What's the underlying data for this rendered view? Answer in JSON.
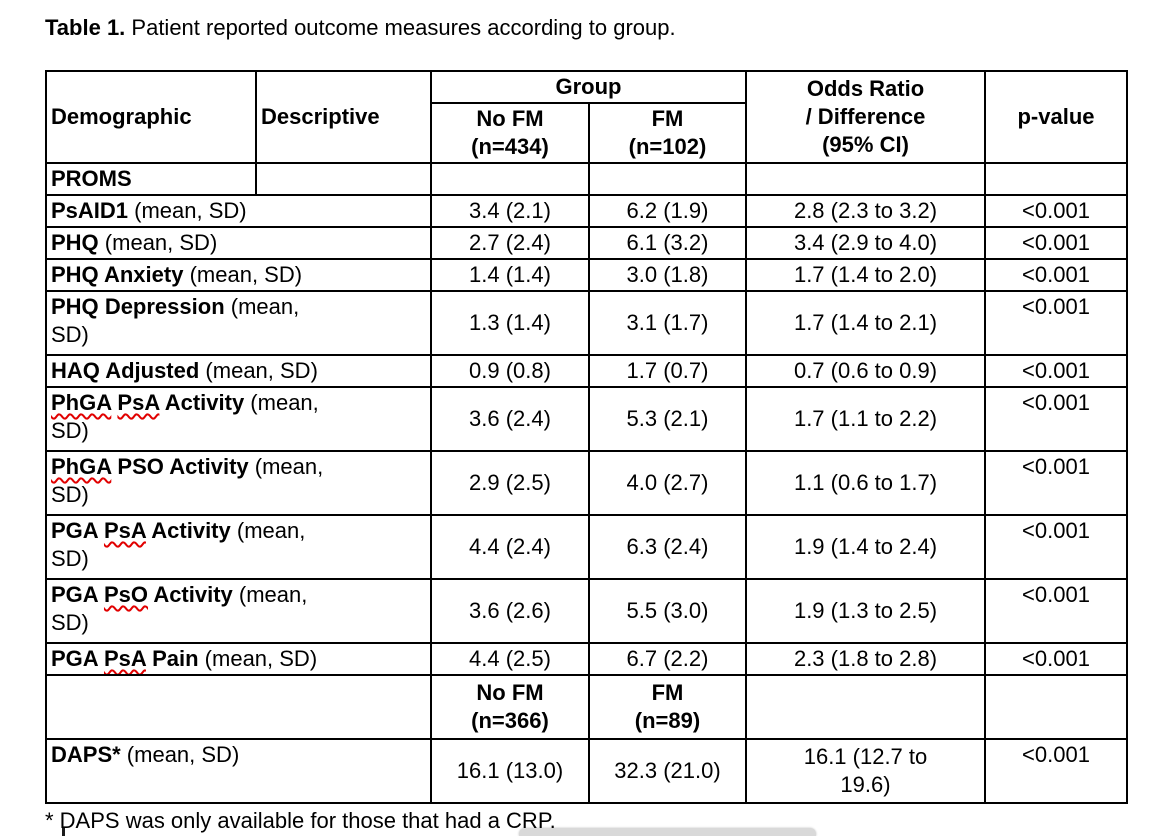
{
  "caption": {
    "bold": "Table 1.",
    "rest": " Patient reported outcome measures according to group."
  },
  "footnote": "* DAPS was only available for those that had a CRP.",
  "colors": {
    "spellcheck_underline": "#e10000",
    "border": "#000000",
    "scroll_pill": "#d9d9d9"
  },
  "table": {
    "header": {
      "demographic": "Demographic",
      "descriptive": "Descriptive",
      "group": "Group",
      "no_fm": "No FM\n(n=434)",
      "fm": "FM\n(n=102)",
      "odds_ratio": "Odds Ratio\n/ Difference\n(95% CI)",
      "p_value": "p-value"
    },
    "section_row": {
      "label": "PROMS"
    },
    "rows": [
      {
        "label": [
          {
            "text": "PsAID1",
            "misspelled": false
          }
        ],
        "rest": " (mean, SD)",
        "no_fm": "3.4 (2.1)",
        "fm": "6.2 (1.9)",
        "odds": "2.8 (2.3 to 3.2)",
        "p": "<0.001"
      },
      {
        "label": [
          {
            "text": "PHQ",
            "misspelled": false
          }
        ],
        "rest": " (mean, SD)",
        "no_fm": "2.7 (2.4)",
        "fm": "6.1 (3.2)",
        "odds": "3.4 (2.9 to 4.0)",
        "p": "<0.001"
      },
      {
        "label": [
          {
            "text": "PHQ",
            "misspelled": false
          },
          {
            "text": "Anxiety",
            "misspelled": false
          }
        ],
        "rest": " (mean, SD)",
        "no_fm": "1.4 (1.4)",
        "fm": "3.0 (1.8)",
        "odds": "1.7 (1.4 to 2.0)",
        "p": "<0.001"
      },
      {
        "label": [
          {
            "text": "PHQ",
            "misspelled": false
          },
          {
            "text": "Depression",
            "misspelled": false
          }
        ],
        "rest": " (mean,\nSD)",
        "no_fm": "1.3 (1.4)",
        "fm": "3.1 (1.7)",
        "odds": "1.7 (1.4 to 2.1)",
        "p": "<0.001"
      },
      {
        "label": [
          {
            "text": "HAQ",
            "misspelled": false
          },
          {
            "text": "Adjusted",
            "misspelled": false
          }
        ],
        "rest": " (mean, SD)",
        "no_fm": "0.9 (0.8)",
        "fm": "1.7 (0.7)",
        "odds": "0.7 (0.6 to 0.9)",
        "p": "<0.001"
      },
      {
        "label": [
          {
            "text": "PhGA",
            "misspelled": true
          },
          {
            "text": "PsA",
            "misspelled": true
          },
          {
            "text": "Activity",
            "misspelled": false
          }
        ],
        "rest": " (mean,\nSD)",
        "no_fm": "3.6 (2.4)",
        "fm": "5.3 (2.1)",
        "odds": "1.7 (1.1 to 2.2)",
        "p": "<0.001"
      },
      {
        "label": [
          {
            "text": "PhGA",
            "misspelled": true
          },
          {
            "text": "PSO",
            "misspelled": false
          },
          {
            "text": "Activity",
            "misspelled": false
          }
        ],
        "rest": " (mean,\nSD)",
        "no_fm": "2.9 (2.5)",
        "fm": "4.0 (2.7)",
        "odds": "1.1 (0.6 to 1.7)",
        "p": "<0.001"
      },
      {
        "label": [
          {
            "text": "PGA",
            "misspelled": false
          },
          {
            "text": "PsA",
            "misspelled": true
          },
          {
            "text": "Activity",
            "misspelled": false
          }
        ],
        "rest": " (mean,\nSD)",
        "no_fm": "4.4 (2.4)",
        "fm": "6.3 (2.4)",
        "odds": "1.9 (1.4 to 2.4)",
        "p": "<0.001"
      },
      {
        "label": [
          {
            "text": "PGA",
            "misspelled": false
          },
          {
            "text": "PsO",
            "misspelled": true
          },
          {
            "text": "Activity",
            "misspelled": false
          }
        ],
        "rest": " (mean,\nSD)",
        "no_fm": "3.6 (2.6)",
        "fm": "5.5 (3.0)",
        "odds": "1.9 (1.3 to 2.5)",
        "p": "<0.001"
      },
      {
        "label": [
          {
            "text": "PGA",
            "misspelled": false
          },
          {
            "text": "PsA",
            "misspelled": true
          },
          {
            "text": "Pain",
            "misspelled": false
          }
        ],
        "rest": " (mean, SD)",
        "no_fm": "4.4 (2.5)",
        "fm": "6.7 (2.2)",
        "odds": "2.3 (1.8 to 2.8)",
        "p": "<0.001"
      }
    ],
    "subgroup_row": {
      "no_fm": "No FM\n(n=366)",
      "fm": "FM\n(n=89)"
    },
    "daps_row": {
      "label": [
        {
          "text": "DAPS*",
          "misspelled": false
        }
      ],
      "rest": " (mean, SD)",
      "no_fm": "16.1 (13.0)",
      "fm": "32.3 (21.0)",
      "odds": "16.1 (12.7 to\n19.6)",
      "p": "<0.001"
    }
  }
}
